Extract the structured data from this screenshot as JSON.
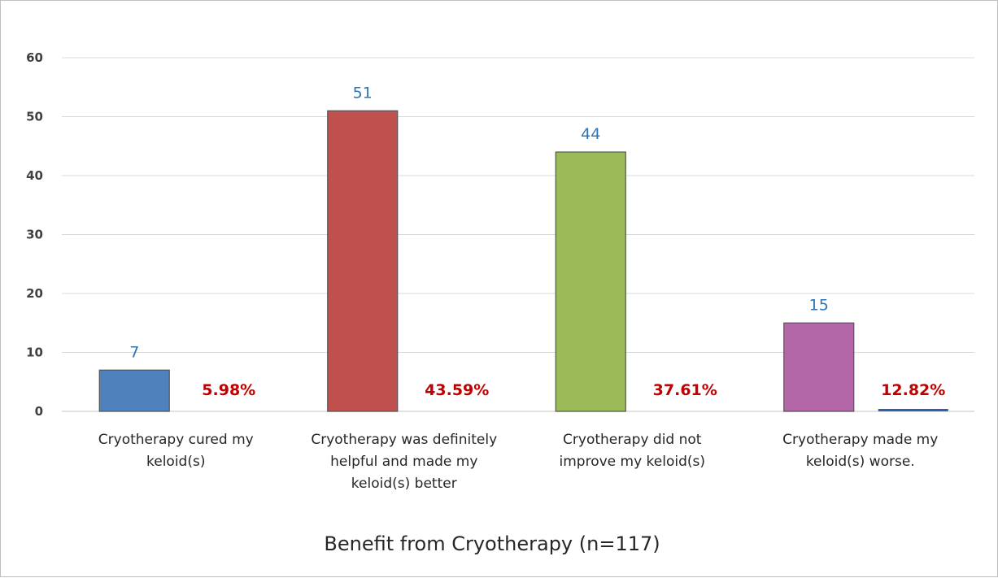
{
  "chart_data": {
    "type": "bar",
    "title": "Benefit from Cryotherapy (n=117)",
    "categories": [
      [
        "Cryotherapy cured my",
        "keloid(s)"
      ],
      [
        "Cryotherapy was definitely",
        "helpful and made my",
        "keloid(s) better"
      ],
      [
        "Cryotherapy did not",
        "improve my keloid(s)"
      ],
      [
        "Cryotherapy made my",
        "keloid(s) worse."
      ]
    ],
    "series": [
      {
        "values": [
          7,
          51,
          44,
          15
        ],
        "colors": [
          "#4f81bd",
          "#c0504d",
          "#9bbb59",
          "#b366a8"
        ],
        "value_labels": [
          "7",
          "51",
          "44",
          "15"
        ]
      },
      {
        "values": [
          5.98,
          43.59,
          37.61,
          12.82
        ],
        "value_labels": [
          "5.98%",
          "43.59%",
          "37.61%",
          "12.82%"
        ],
        "color": "#c00000"
      }
    ],
    "y_ticks": [
      "0",
      "10",
      "20",
      "30",
      "40",
      "50",
      "60"
    ],
    "ylim": [
      0,
      60
    ],
    "grid": true,
    "colors": {
      "grid": "#d9d9d9",
      "count_label": "#2e75b6",
      "percent_label": "#c00000",
      "small_bar": "#2f5fad"
    }
  }
}
